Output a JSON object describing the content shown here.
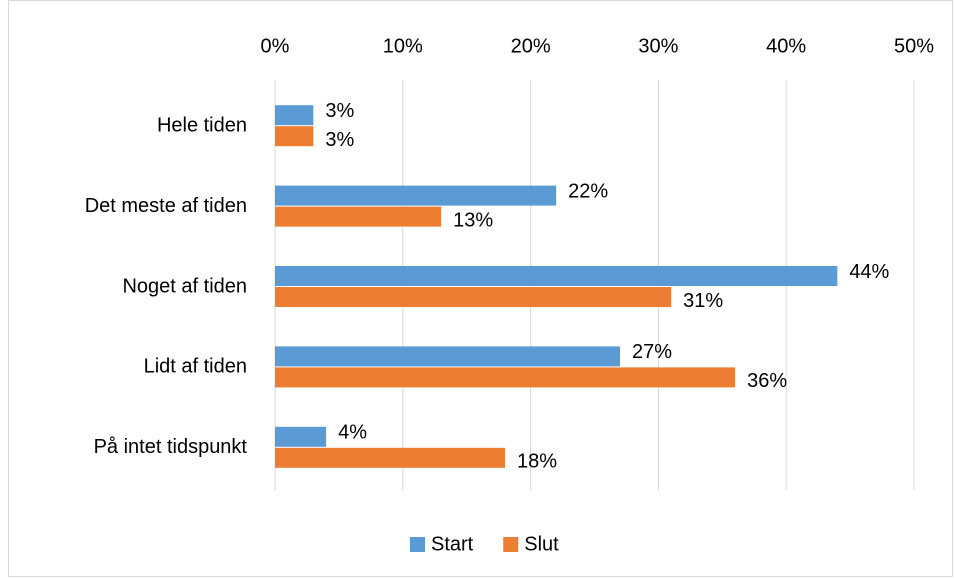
{
  "chart_data": {
    "type": "hbar",
    "categories": [
      "Hele tiden",
      "Det meste af tiden",
      "Noget af tiden",
      "Lidt af tiden",
      "På intet tidspunkt"
    ],
    "series": [
      {
        "name": "Start",
        "color": "#5b9bd5",
        "values": [
          3,
          22,
          44,
          27,
          4
        ],
        "value_labels": [
          "3%",
          "22%",
          "44%",
          "27%",
          "4%"
        ]
      },
      {
        "name": "Slut",
        "color": "#ed7d31",
        "values": [
          3,
          13,
          31,
          36,
          18
        ],
        "value_labels": [
          "3%",
          "13%",
          "31%",
          "36%",
          "18%"
        ]
      }
    ],
    "xlim": [
      0,
      50
    ],
    "xticks": [
      {
        "value": 0,
        "label": "0%"
      },
      {
        "value": 10,
        "label": "10%"
      },
      {
        "value": 20,
        "label": "20%"
      },
      {
        "value": 30,
        "label": "30%"
      },
      {
        "value": 40,
        "label": "40%"
      },
      {
        "value": 50,
        "label": "50%"
      }
    ],
    "grid": true,
    "legend": "bottom"
  }
}
